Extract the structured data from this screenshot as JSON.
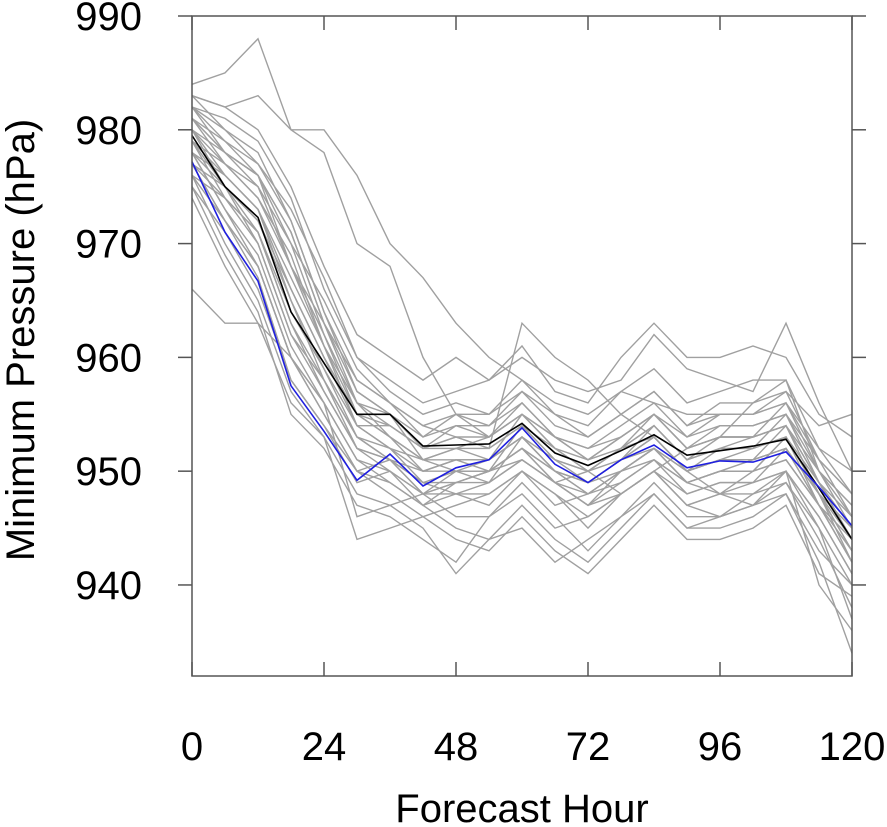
{
  "chart_data": {
    "type": "line",
    "xlabel": "Forecast Hour",
    "ylabel": "Minimum Pressure (hPa)",
    "xlim": [
      0,
      120
    ],
    "ylim": [
      932,
      990
    ],
    "xticks": [
      0,
      24,
      48,
      72,
      96,
      120
    ],
    "xtick_labels": [
      "0",
      "24",
      "48",
      "72",
      "96",
      "120"
    ],
    "yticks": [
      940,
      950,
      960,
      970,
      980,
      990
    ],
    "ytick_labels": [
      "940",
      "950",
      "960",
      "970",
      "980",
      "990"
    ],
    "grid": false,
    "x": [
      0,
      6,
      12,
      18,
      24,
      30,
      36,
      42,
      48,
      54,
      60,
      66,
      72,
      78,
      84,
      90,
      96,
      102,
      108,
      114,
      120
    ],
    "colors": {
      "ensemble": "#a0a0a0",
      "black": "#000000",
      "blue": "#1f1fe0"
    },
    "highlight_series": [
      {
        "color": "black",
        "values": [
          979.5,
          975,
          972.3,
          964,
          959.5,
          955,
          955,
          952.2,
          952.3,
          952.4,
          954.2,
          951.6,
          950.5,
          951.8,
          953.2,
          951.4,
          951.8,
          952.2,
          952.8,
          948.5,
          944
        ]
      },
      {
        "color": "blue",
        "values": [
          977.2,
          971,
          966.7,
          957.5,
          953.5,
          949.2,
          951.5,
          948.7,
          950.3,
          951,
          953.8,
          950.6,
          949,
          951,
          952.3,
          950.3,
          950.9,
          950.8,
          951.7,
          948.6,
          945.2
        ]
      }
    ],
    "ensemble_series": [
      [
        984,
        985,
        988,
        980,
        978,
        970,
        968,
        960,
        955,
        953,
        955,
        952,
        950,
        948,
        950,
        952,
        953,
        956,
        958,
        950,
        946
      ],
      [
        983,
        982,
        983,
        980,
        980,
        976,
        970,
        967,
        963,
        960,
        958,
        956,
        955,
        957,
        956,
        955,
        955,
        955,
        957,
        954,
        955
      ],
      [
        982,
        980,
        978,
        972,
        964,
        958,
        956,
        954,
        953,
        952,
        963,
        960,
        958,
        955,
        953,
        950,
        948,
        950,
        953,
        948,
        942
      ],
      [
        981,
        978,
        976,
        968,
        962,
        956,
        953,
        951,
        950,
        950,
        952,
        949,
        947,
        950,
        952,
        949,
        948,
        947,
        950,
        946,
        941
      ],
      [
        980,
        976,
        973,
        965,
        958,
        953,
        951,
        949,
        948,
        947,
        950,
        948,
        945,
        948,
        950,
        947,
        946,
        948,
        950,
        940,
        936
      ],
      [
        979,
        975,
        970,
        962,
        958,
        952,
        950,
        948,
        946,
        946,
        949,
        946,
        943,
        946,
        949,
        946,
        946,
        947,
        949,
        944,
        938
      ],
      [
        978,
        973,
        968,
        960,
        956,
        951,
        949,
        947,
        945,
        944,
        947,
        944,
        942,
        945,
        948,
        945,
        945,
        946,
        948,
        942,
        934
      ],
      [
        977,
        972,
        967,
        958,
        954,
        950,
        948,
        946,
        944,
        943,
        946,
        943,
        941,
        944,
        947,
        944,
        944,
        945,
        947,
        941,
        939
      ],
      [
        976,
        970,
        965,
        957,
        953,
        948,
        947,
        945,
        941,
        944,
        945,
        942,
        944,
        946,
        948,
        945,
        946,
        947,
        948,
        943,
        940
      ],
      [
        975,
        969,
        964,
        955,
        952,
        947,
        946,
        944,
        942,
        946,
        948,
        945,
        946,
        948,
        950,
        947,
        948,
        949,
        950,
        945,
        937
      ],
      [
        974,
        968,
        963,
        956,
        953,
        944,
        945,
        946,
        947,
        948,
        950,
        947,
        948,
        950,
        952,
        949,
        950,
        951,
        952,
        947,
        942
      ],
      [
        966,
        963,
        963,
        960,
        956,
        946,
        947,
        948,
        949,
        950,
        951,
        949,
        950,
        952,
        953,
        950,
        951,
        952,
        953,
        949,
        944
      ],
      [
        982,
        981,
        979,
        974,
        966,
        960,
        958,
        956,
        957,
        958,
        960,
        958,
        957,
        958,
        962,
        959,
        958,
        957,
        963,
        956,
        950
      ],
      [
        983,
        982,
        980,
        975,
        968,
        962,
        960,
        958,
        960,
        958,
        961,
        957,
        956,
        960,
        963,
        960,
        960,
        961,
        960,
        955,
        953
      ],
      [
        981,
        979,
        977,
        973,
        967,
        960,
        957,
        955,
        956,
        955,
        958,
        955,
        954,
        957,
        959,
        956,
        957,
        958,
        958,
        952,
        948
      ],
      [
        980,
        978,
        975,
        970,
        965,
        959,
        956,
        953,
        955,
        954,
        957,
        954,
        953,
        955,
        957,
        954,
        956,
        956,
        957,
        951,
        946
      ],
      [
        979,
        977,
        974,
        968,
        963,
        957,
        955,
        952,
        954,
        953,
        956,
        953,
        952,
        954,
        956,
        953,
        955,
        955,
        956,
        950,
        945
      ],
      [
        978,
        976,
        973,
        967,
        961,
        955,
        953,
        951,
        952,
        951,
        955,
        952,
        951,
        953,
        955,
        952,
        954,
        954,
        955,
        949,
        944
      ],
      [
        977,
        975,
        972,
        966,
        960,
        954,
        952,
        950,
        951,
        950,
        954,
        951,
        950,
        952,
        954,
        951,
        953,
        953,
        954,
        948,
        943
      ],
      [
        976,
        974,
        971,
        964,
        959,
        953,
        951,
        950,
        950,
        949,
        953,
        950,
        949,
        951,
        953,
        950,
        952,
        952,
        953,
        947,
        942
      ],
      [
        980,
        977,
        974,
        969,
        961,
        954,
        954,
        952,
        953,
        952,
        954,
        952,
        950,
        951,
        954,
        951,
        952,
        952,
        955,
        950,
        947
      ],
      [
        981,
        978,
        976,
        971,
        963,
        956,
        955,
        951,
        952,
        953,
        955,
        953,
        951,
        952,
        955,
        952,
        953,
        953,
        956,
        951,
        948
      ],
      [
        979,
        976,
        973,
        966,
        960,
        955,
        953,
        950,
        951,
        951,
        953,
        951,
        949,
        950,
        952,
        950,
        951,
        951,
        954,
        949,
        945
      ],
      [
        978,
        975,
        971,
        963,
        958,
        953,
        952,
        949,
        949,
        950,
        952,
        950,
        948,
        949,
        951,
        949,
        950,
        950,
        953,
        948,
        944
      ],
      [
        977,
        974,
        970,
        962,
        957,
        952,
        951,
        948,
        948,
        949,
        951,
        949,
        947,
        948,
        950,
        948,
        949,
        949,
        952,
        947,
        943
      ],
      [
        982,
        978,
        976,
        970,
        962,
        955,
        954,
        952,
        952,
        952,
        954,
        951,
        950,
        952,
        954,
        951,
        952,
        953,
        954,
        949,
        946
      ],
      [
        983,
        980,
        977,
        972,
        964,
        957,
        955,
        953,
        954,
        954,
        956,
        953,
        952,
        953,
        955,
        953,
        954,
        954,
        955,
        951,
        948
      ],
      [
        980,
        975,
        972,
        965,
        959,
        954,
        952,
        951,
        951,
        951,
        953,
        950,
        949,
        951,
        953,
        950,
        951,
        951,
        952,
        948,
        943
      ],
      [
        975,
        971,
        966,
        958,
        954,
        949,
        950,
        947,
        949,
        950,
        952,
        949,
        948,
        950,
        951,
        949,
        950,
        950,
        951,
        947,
        944
      ],
      [
        976,
        972,
        968,
        960,
        955,
        950,
        951,
        948,
        950,
        951,
        953,
        950,
        949,
        951,
        952,
        950,
        951,
        951,
        952,
        948,
        945
      ],
      [
        982,
        979,
        976,
        971,
        963,
        958,
        956,
        954,
        955,
        955,
        957,
        955,
        953,
        955,
        957,
        954,
        955,
        955,
        956,
        952,
        950
      ],
      [
        981,
        977,
        975,
        968,
        961,
        956,
        954,
        952,
        953,
        953,
        955,
        953,
        951,
        953,
        955,
        952,
        953,
        953,
        954,
        950,
        947
      ],
      [
        979,
        974,
        971,
        963,
        957,
        952,
        951,
        949,
        950,
        950,
        952,
        950,
        948,
        950,
        952,
        949,
        950,
        950,
        951,
        947,
        942
      ],
      [
        978,
        973,
        969,
        961,
        956,
        951,
        950,
        948,
        949,
        949,
        951,
        949,
        947,
        949,
        951,
        948,
        949,
        949,
        950,
        946,
        941
      ],
      [
        977,
        972,
        968,
        960,
        955,
        950,
        949,
        947,
        948,
        948,
        950,
        948,
        946,
        948,
        950,
        947,
        948,
        948,
        949,
        945,
        940
      ]
    ]
  }
}
